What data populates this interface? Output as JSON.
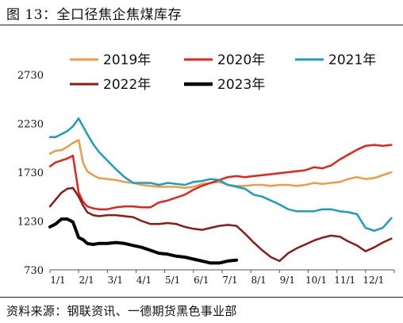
{
  "header": {
    "title": "图 13：全口径焦企焦煤库存"
  },
  "footer": {
    "source": "资料来源：钢联资讯、一德期货黑色事业部"
  },
  "chart_data": {
    "type": "line",
    "ylim": [
      730,
      2730
    ],
    "yticks": [
      730,
      1230,
      1730,
      2230,
      2730
    ],
    "xticks": [
      "1/1",
      "2/1",
      "3/1",
      "4/1",
      "5/1",
      "6/1",
      "7/1",
      "8/1",
      "9/1",
      "10/1",
      "11/1",
      "12/1"
    ],
    "series": [
      {
        "name": "2019年",
        "color": "#F39A45",
        "x": [
          0,
          0.2,
          0.4,
          0.6,
          0.8,
          1,
          1.15,
          1.3,
          1.5,
          1.7,
          2,
          2.3,
          2.6,
          2.9,
          3.2,
          3.5,
          3.8,
          4.1,
          4.4,
          4.7,
          5,
          5.3,
          5.6,
          5.9,
          6.2,
          6.5,
          6.8,
          7.1,
          7.4,
          7.7,
          8,
          8.3,
          8.6,
          8.9,
          9.2,
          9.5,
          9.8,
          10.1,
          10.4,
          10.7,
          11,
          11.3,
          11.6,
          11.9
        ],
        "values": [
          1920,
          1950,
          1955,
          1990,
          2030,
          2060,
          1830,
          1740,
          1700,
          1670,
          1660,
          1650,
          1630,
          1620,
          1600,
          1590,
          1580,
          1580,
          1580,
          1570,
          1580,
          1610,
          1620,
          1630,
          1600,
          1590,
          1590,
          1600,
          1600,
          1590,
          1600,
          1600,
          1590,
          1600,
          1620,
          1610,
          1620,
          1630,
          1660,
          1680,
          1660,
          1670,
          1700,
          1730
        ]
      },
      {
        "name": "2020年",
        "color": "#E8231C",
        "x": [
          0,
          0.2,
          0.4,
          0.6,
          0.8,
          1,
          1.15,
          1.3,
          1.5,
          1.7,
          2,
          2.3,
          2.6,
          2.9,
          3.2,
          3.5,
          3.8,
          4.1,
          4.4,
          4.7,
          5,
          5.3,
          5.6,
          5.9,
          6.2,
          6.5,
          6.8,
          7.1,
          7.4,
          7.7,
          8,
          8.3,
          8.6,
          8.9,
          9.2,
          9.5,
          9.8,
          10.1,
          10.4,
          10.7,
          11,
          11.3,
          11.6,
          11.9
        ],
        "values": [
          1790,
          1830,
          1850,
          1870,
          1900,
          1520,
          1430,
          1380,
          1360,
          1350,
          1350,
          1370,
          1380,
          1380,
          1370,
          1370,
          1420,
          1440,
          1470,
          1500,
          1550,
          1590,
          1620,
          1650,
          1680,
          1690,
          1680,
          1690,
          1700,
          1710,
          1720,
          1730,
          1740,
          1750,
          1780,
          1770,
          1800,
          1860,
          1910,
          1960,
          2000,
          2010,
          2000,
          2010
        ]
      },
      {
        "name": "2021年",
        "color": "#1A9EC1",
        "x": [
          0,
          0.2,
          0.4,
          0.6,
          0.8,
          1,
          1.15,
          1.3,
          1.5,
          1.7,
          2,
          2.3,
          2.6,
          2.9,
          3.2,
          3.5,
          3.8,
          4.1,
          4.4,
          4.7,
          5,
          5.3,
          5.6,
          5.9,
          6.2,
          6.5,
          6.8,
          7.1,
          7.4,
          7.7,
          8,
          8.3,
          8.6,
          8.9,
          9.2,
          9.5,
          9.8,
          10.1,
          10.4,
          10.7,
          11,
          11.3,
          11.6,
          11.9
        ],
        "values": [
          2090,
          2090,
          2120,
          2150,
          2200,
          2280,
          2200,
          2120,
          2020,
          1940,
          1850,
          1760,
          1680,
          1620,
          1620,
          1620,
          1600,
          1620,
          1610,
          1600,
          1630,
          1640,
          1660,
          1650,
          1600,
          1580,
          1560,
          1500,
          1480,
          1440,
          1400,
          1350,
          1330,
          1330,
          1330,
          1350,
          1350,
          1330,
          1320,
          1300,
          1160,
          1130,
          1160,
          1260
        ]
      },
      {
        "name": "2022年",
        "color": "#8E1B16",
        "x": [
          0,
          0.2,
          0.4,
          0.6,
          0.8,
          1,
          1.15,
          1.3,
          1.5,
          1.7,
          2,
          2.3,
          2.6,
          2.9,
          3.2,
          3.5,
          3.8,
          4.1,
          4.4,
          4.7,
          5,
          5.3,
          5.6,
          5.9,
          6.2,
          6.5,
          6.8,
          7.1,
          7.4,
          7.7,
          8,
          8.3,
          8.6,
          8.9,
          9.2,
          9.5,
          9.8,
          10.1,
          10.4,
          10.7,
          11,
          11.3,
          11.6,
          11.9
        ],
        "values": [
          1380,
          1450,
          1520,
          1560,
          1570,
          1480,
          1390,
          1320,
          1290,
          1280,
          1290,
          1290,
          1280,
          1270,
          1230,
          1200,
          1200,
          1210,
          1200,
          1170,
          1150,
          1140,
          1160,
          1180,
          1190,
          1180,
          1100,
          1010,
          930,
          860,
          820,
          900,
          950,
          990,
          1030,
          1060,
          1080,
          1070,
          1020,
          980,
          920,
          960,
          1010,
          1050
        ]
      },
      {
        "name": "2023年",
        "color": "#000000",
        "x": [
          0,
          0.2,
          0.4,
          0.6,
          0.8,
          1,
          1.15,
          1.3,
          1.5,
          1.7,
          2,
          2.3,
          2.6,
          2.9,
          3.2,
          3.5,
          3.8,
          4.1,
          4.4,
          4.7,
          5,
          5.3,
          5.6,
          5.9,
          6.2,
          6.5
        ],
        "values": [
          1170,
          1200,
          1250,
          1250,
          1220,
          1060,
          1040,
          1000,
          990,
          1000,
          1000,
          1010,
          1000,
          980,
          960,
          930,
          900,
          890,
          870,
          860,
          840,
          820,
          800,
          800,
          820,
          830
        ]
      }
    ]
  }
}
